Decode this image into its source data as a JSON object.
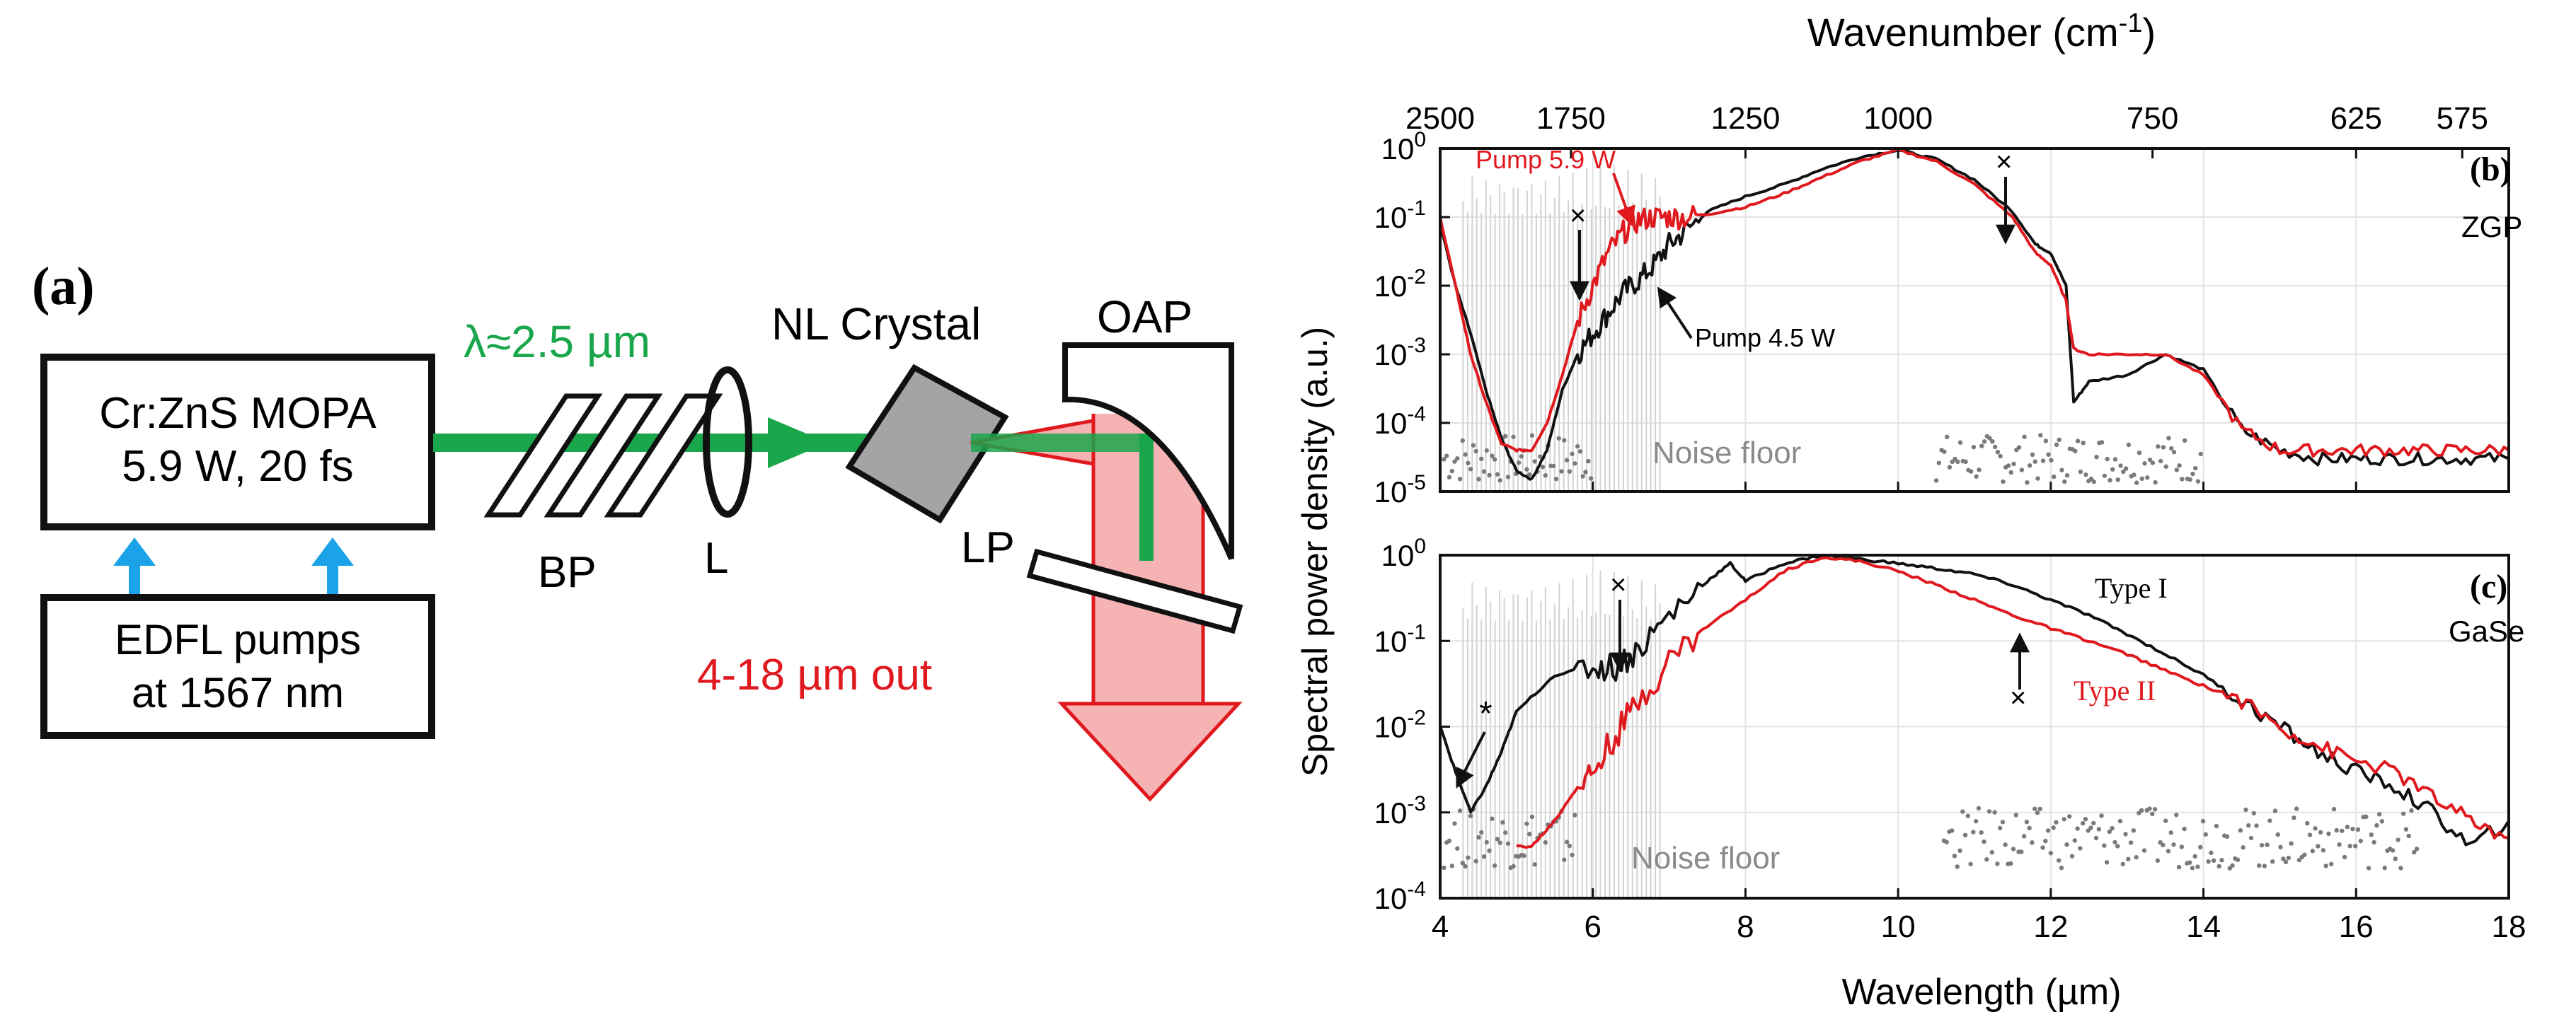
{
  "figure": {
    "panel_a": {
      "label": "(a)",
      "source_box": {
        "line1": "Cr:ZnS MOPA",
        "line2": "5.9 W, 20 fs"
      },
      "pump_box": {
        "line1": "EDFL pumps",
        "line2": "at 1567 nm"
      },
      "wavelength_label": "λ≈2.5 µm",
      "bp_label": "BP",
      "lens_label": "L",
      "crystal_label": "NL Crystal",
      "oap_label": "OAP",
      "lp_label": "LP",
      "output_label": "4-18 µm out"
    },
    "panels_bc": {
      "top_axis_title": "Wavenumber (cm",
      "top_axis_sup": "-1",
      "top_axis_close": ")",
      "x_axis_title": "Wavelength (µm)",
      "y_axis_title": "Spectral power density (a.u.)",
      "colors": {
        "black": "#111111",
        "red": "#e0191f",
        "gray": "#7a7a7a",
        "light_gray": "#d2d2d2"
      }
    }
  },
  "chart_data": [
    {
      "type": "line",
      "panel": "(b)",
      "title": "ZGP",
      "xlabel": "Wavelength (µm)",
      "ylabel": "Spectral power density (a.u.)",
      "xlim": [
        4,
        18
      ],
      "ylim": [
        1e-05,
        1
      ],
      "yscale": "log",
      "x_ticks": [
        4,
        6,
        8,
        10,
        12,
        14,
        16,
        18
      ],
      "y_ticks": [
        {
          "value": 1,
          "mantissa": "10",
          "exp": "0"
        },
        {
          "value": 0.1,
          "mantissa": "10",
          "exp": "-1"
        },
        {
          "value": 0.01,
          "mantissa": "10",
          "exp": "-2"
        },
        {
          "value": 0.001,
          "mantissa": "10",
          "exp": "-3"
        },
        {
          "value": 0.0001,
          "mantissa": "10",
          "exp": "-4"
        },
        {
          "value": 1e-05,
          "mantissa": "10",
          "exp": "-5"
        }
      ],
      "top_axis_ticks": [
        {
          "label": "2500",
          "wavelength": 4.0
        },
        {
          "label": "1750",
          "wavelength": 5.714
        },
        {
          "label": "1250",
          "wavelength": 8.0
        },
        {
          "label": "1000",
          "wavelength": 10.0
        },
        {
          "label": "750",
          "wavelength": 13.333
        },
        {
          "label": "625",
          "wavelength": 16.0
        },
        {
          "label": "575",
          "wavelength": 17.391
        }
      ],
      "series": [
        {
          "name": "Pump 4.5 W",
          "color": "black",
          "x": [
            4.0,
            4.2,
            4.4,
            4.6,
            4.8,
            5.0,
            5.2,
            5.4,
            5.6,
            5.8,
            6.0,
            6.2,
            6.4,
            6.6,
            6.8,
            7.0,
            7.2,
            7.5,
            8.0,
            8.5,
            9.0,
            9.5,
            10.0,
            10.5,
            11.0,
            11.5,
            11.8,
            12.0,
            12.2,
            12.3,
            12.5,
            13.0,
            13.5,
            14.0,
            14.5,
            15.0,
            15.5,
            16.0,
            16.5,
            17.0,
            17.5,
            18.0
          ],
          "y": [
            0.08,
            0.01,
            0.002,
            0.0003,
            6e-05,
            2e-05,
            1.5e-05,
            4e-05,
            0.0003,
            0.001,
            0.002,
            0.004,
            0.008,
            0.012,
            0.02,
            0.04,
            0.06,
            0.12,
            0.2,
            0.3,
            0.5,
            0.75,
            0.95,
            0.7,
            0.35,
            0.12,
            0.04,
            0.03,
            0.01,
            0.0002,
            0.0004,
            0.0005,
            0.001,
            0.0006,
            8e-05,
            4e-05,
            3e-05,
            3e-05,
            3e-05,
            3e-05,
            3e-05,
            3e-05
          ]
        },
        {
          "name": "Pump 5.9 W",
          "color": "red",
          "x": [
            4.0,
            4.2,
            4.4,
            4.6,
            4.8,
            5.0,
            5.2,
            5.4,
            5.6,
            5.8,
            6.0,
            6.2,
            6.4,
            6.6,
            6.8,
            7.0,
            7.2,
            7.5,
            8.0,
            8.5,
            9.0,
            9.5,
            10.0,
            10.5,
            11.0,
            11.5,
            11.8,
            12.0,
            12.2,
            12.3,
            12.5,
            13.0,
            13.5,
            14.0,
            14.5,
            15.0,
            15.5,
            16.0,
            16.5,
            17.0,
            17.5,
            18.0
          ],
          "y": [
            0.1,
            0.01,
            0.001,
            0.0002,
            5e-05,
            4e-05,
            4e-05,
            0.0001,
            0.0005,
            0.003,
            0.01,
            0.03,
            0.06,
            0.09,
            0.1,
            0.1,
            0.1,
            0.11,
            0.14,
            0.22,
            0.38,
            0.65,
            0.95,
            0.65,
            0.3,
            0.1,
            0.03,
            0.02,
            0.006,
            0.0012,
            0.001,
            0.001,
            0.001,
            0.0005,
            8e-05,
            4e-05,
            4e-05,
            4e-05,
            4e-05,
            4e-05,
            4e-05,
            4e-05
          ]
        }
      ],
      "annotations": [
        "Pump 5.9 W",
        "Pump 4.5 W",
        "Noise floor",
        "×",
        "×"
      ]
    },
    {
      "type": "line",
      "panel": "(c)",
      "title": "GaSe",
      "xlabel": "Wavelength (µm)",
      "ylabel": "Spectral power density (a.u.)",
      "xlim": [
        4,
        18
      ],
      "ylim": [
        0.0001,
        1
      ],
      "yscale": "log",
      "x_ticks": [
        4,
        6,
        8,
        10,
        12,
        14,
        16,
        18
      ],
      "y_ticks": [
        {
          "value": 1,
          "mantissa": "10",
          "exp": "0"
        },
        {
          "value": 0.1,
          "mantissa": "10",
          "exp": "-1"
        },
        {
          "value": 0.01,
          "mantissa": "10",
          "exp": "-2"
        },
        {
          "value": 0.001,
          "mantissa": "10",
          "exp": "-3"
        },
        {
          "value": 0.0001,
          "mantissa": "10",
          "exp": "-4"
        }
      ],
      "series": [
        {
          "name": "Type I",
          "color": "black",
          "x": [
            4.0,
            4.2,
            4.4,
            4.6,
            4.8,
            5.0,
            5.5,
            6.0,
            6.3,
            6.6,
            7.0,
            7.5,
            7.8,
            8.0,
            8.5,
            9.0,
            9.5,
            10.0,
            10.5,
            11.0,
            11.5,
            12.0,
            12.5,
            13.0,
            13.5,
            14.0,
            14.5,
            15.0,
            15.5,
            16.0,
            16.5,
            17.0,
            17.5,
            18.0
          ],
          "y": [
            0.01,
            0.003,
            0.001,
            0.002,
            0.005,
            0.015,
            0.04,
            0.05,
            0.05,
            0.08,
            0.2,
            0.5,
            0.8,
            0.5,
            0.8,
            1.0,
            0.9,
            0.8,
            0.7,
            0.6,
            0.45,
            0.3,
            0.2,
            0.12,
            0.07,
            0.04,
            0.02,
            0.01,
            0.005,
            0.003,
            0.002,
            0.001,
            0.0004,
            0.0008
          ]
        },
        {
          "name": "Type II",
          "color": "red",
          "x": [
            5.0,
            5.2,
            5.5,
            5.8,
            6.0,
            6.3,
            6.6,
            7.0,
            7.5,
            8.0,
            8.5,
            9.0,
            9.5,
            10.0,
            10.5,
            11.0,
            11.5,
            12.0,
            12.5,
            13.0,
            13.5,
            14.0,
            14.5,
            15.0,
            15.5,
            16.0,
            16.5,
            17.0,
            17.5,
            18.0
          ],
          "y": [
            0.0004,
            0.0004,
            0.0008,
            0.002,
            0.003,
            0.008,
            0.02,
            0.06,
            0.15,
            0.3,
            0.65,
            0.95,
            0.85,
            0.65,
            0.45,
            0.3,
            0.2,
            0.14,
            0.1,
            0.07,
            0.045,
            0.03,
            0.02,
            0.01,
            0.006,
            0.004,
            0.003,
            0.0015,
            0.0008,
            0.0005
          ]
        }
      ],
      "annotations": [
        "Type I",
        "Type II",
        "Noise floor",
        "×",
        "×",
        "*"
      ]
    }
  ]
}
